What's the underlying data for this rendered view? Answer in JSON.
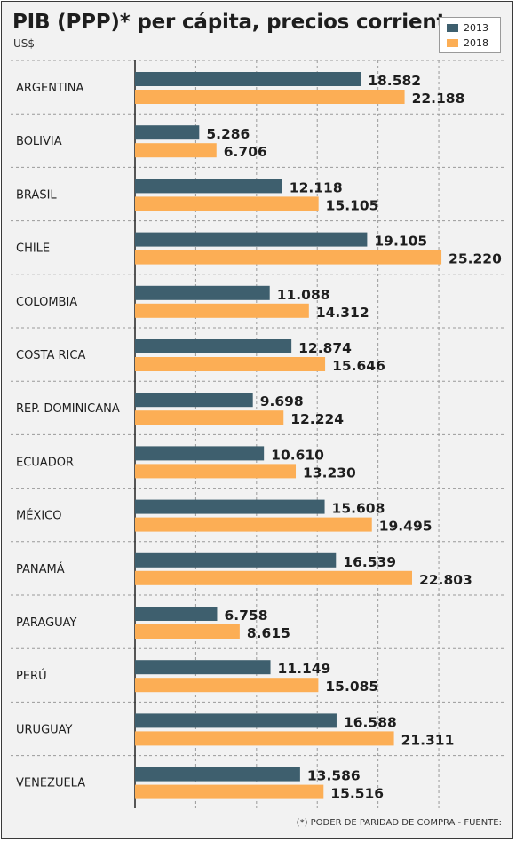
{
  "header": {
    "title": "PIB (PPP)* per cápita, precios corrientes",
    "unit": "US$"
  },
  "footer": {
    "note": "(*) PODER DE PARIDAD DE COMPRA - FUENTE:"
  },
  "colors": {
    "series_2013": "#3e5f6e",
    "series_2018": "#fcae55"
  },
  "chart_data": {
    "type": "bar",
    "orientation": "horizontal",
    "title": "PIB (PPP)* per cápita, precios corrientes",
    "ylabel": "US$",
    "legend_position": "top-right",
    "grid": true,
    "xlim": [
      0,
      25220
    ],
    "categories": [
      "ARGENTINA",
      "BOLIVIA",
      "BRASIL",
      "CHILE",
      "COLOMBIA",
      "COSTA RICA",
      "REP. DOMINICANA",
      "ECUADOR",
      "MÉXICO",
      "PANAMÁ",
      "PARAGUAY",
      "PERÚ",
      "URUGUAY",
      "VENEZUELA"
    ],
    "series": [
      {
        "name": "2013",
        "values": [
          18582,
          5286,
          12118,
          19105,
          11088,
          12874,
          9698,
          10610,
          15608,
          16539,
          6758,
          11149,
          16588,
          13586
        ],
        "labels": [
          "18.582",
          "5.286",
          "12.118",
          "19.105",
          "11.088",
          "12.874",
          "9.698",
          "10.610",
          "15.608",
          "16.539",
          "6.758",
          "11.149",
          "16.588",
          "13.586"
        ]
      },
      {
        "name": "2018",
        "values": [
          22188,
          6706,
          15105,
          25220,
          14312,
          15646,
          12224,
          13230,
          19495,
          22803,
          8615,
          15085,
          21311,
          15516
        ],
        "labels": [
          "22.188",
          "6.706",
          "15.105",
          "25.220",
          "14.312",
          "15.646",
          "12.224",
          "13.230",
          "19.495",
          "22.803",
          "8.615",
          "15.085",
          "21.311",
          "15.516"
        ]
      }
    ]
  }
}
